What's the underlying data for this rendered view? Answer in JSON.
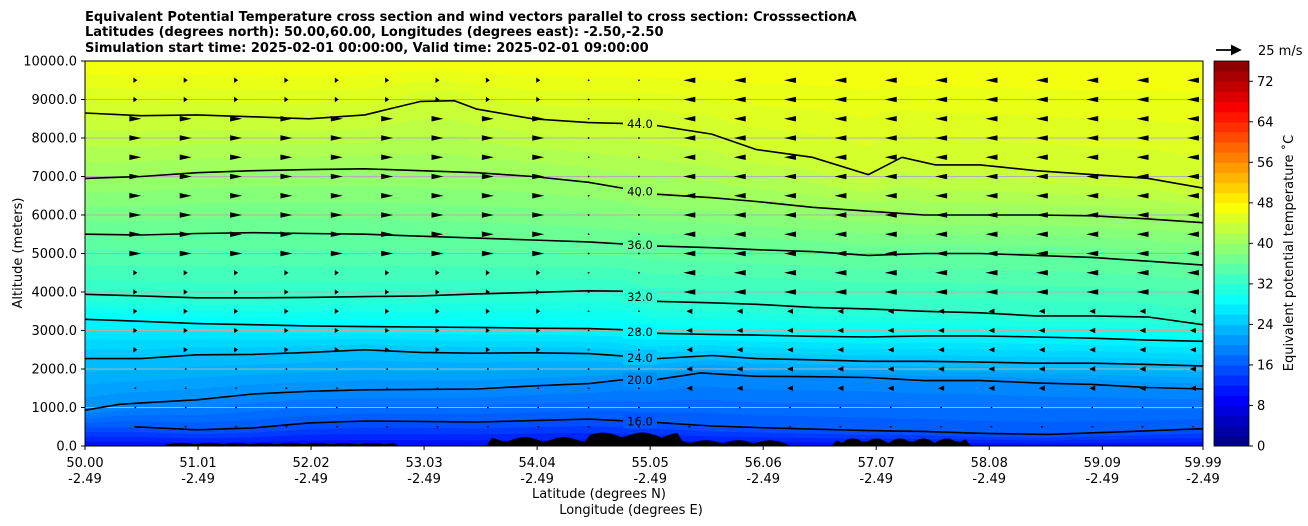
{
  "title_lines": [
    "Equivalent Potential Temperature cross section and wind vectors parallel to cross section: CrosssectionA",
    "Latitudes (degrees north): 50.00,60.00, Longitudes (degrees east): -2.50,-2.50",
    "Simulation start time: 2025-02-01 00:00:00, Valid time: 2025-02-01 09:00:00"
  ],
  "quiver_key": "25 m/s",
  "chart_data": {
    "type": "contour",
    "ylabel": "Altitude (meters)",
    "xlabel_lines": [
      "Latitude (degrees N)",
      "Longitude (degrees E)"
    ],
    "colorbar_label": "Equivalent potential temperature ˚C",
    "x_ticks": [
      {
        "lat": "50.00",
        "lon": "-2.49"
      },
      {
        "lat": "51.01",
        "lon": "-2.49"
      },
      {
        "lat": "52.02",
        "lon": "-2.49"
      },
      {
        "lat": "53.03",
        "lon": "-2.49"
      },
      {
        "lat": "54.04",
        "lon": "-2.49"
      },
      {
        "lat": "55.05",
        "lon": "-2.49"
      },
      {
        "lat": "56.06",
        "lon": "-2.49"
      },
      {
        "lat": "57.07",
        "lon": "-2.49"
      },
      {
        "lat": "58.08",
        "lon": "-2.49"
      },
      {
        "lat": "59.09",
        "lon": "-2.49"
      },
      {
        "lat": "59.99",
        "lon": "-2.49"
      }
    ],
    "x_range": [
      50.0,
      59.99
    ],
    "y_ticks": [
      "0.0",
      "1000.0",
      "2000.0",
      "3000.0",
      "4000.0",
      "5000.0",
      "6000.0",
      "7000.0",
      "8000.0",
      "9000.0",
      "10000.0"
    ],
    "y_range": [
      0,
      10000
    ],
    "colorbar_ticks": [
      "0",
      "8",
      "16",
      "24",
      "32",
      "40",
      "48",
      "56",
      "64",
      "72"
    ],
    "colorbar_range": [
      0,
      76
    ],
    "contours": [
      {
        "level": 16,
        "label": "16.0",
        "points": [
          [
            50.45,
            500
          ],
          [
            51.0,
            420
          ],
          [
            51.5,
            470
          ],
          [
            52.0,
            600
          ],
          [
            52.5,
            650
          ],
          [
            53.0,
            640
          ],
          [
            53.5,
            620
          ],
          [
            54.0,
            660
          ],
          [
            54.5,
            700
          ],
          [
            55.05,
            620
          ],
          [
            55.6,
            520
          ],
          [
            56.0,
            480
          ],
          [
            56.5,
            440
          ],
          [
            57.0,
            400
          ],
          [
            57.5,
            380
          ],
          [
            58.0,
            330
          ],
          [
            58.6,
            300
          ],
          [
            59.2,
            360
          ],
          [
            59.99,
            450
          ]
        ]
      },
      {
        "level": 20,
        "label": "20.0",
        "points": [
          [
            50.0,
            930
          ],
          [
            50.3,
            1080
          ],
          [
            50.5,
            1120
          ],
          [
            51.0,
            1200
          ],
          [
            51.5,
            1350
          ],
          [
            52.0,
            1420
          ],
          [
            52.5,
            1460
          ],
          [
            53.0,
            1470
          ],
          [
            53.5,
            1480
          ],
          [
            54.0,
            1560
          ],
          [
            54.5,
            1620
          ],
          [
            54.8,
            1720
          ],
          [
            55.05,
            1700
          ],
          [
            55.5,
            1900
          ],
          [
            56.0,
            1810
          ],
          [
            56.5,
            1800
          ],
          [
            57.0,
            1780
          ],
          [
            57.5,
            1700
          ],
          [
            58.0,
            1700
          ],
          [
            58.5,
            1640
          ],
          [
            59.0,
            1600
          ],
          [
            59.5,
            1520
          ],
          [
            59.99,
            1480
          ]
        ]
      },
      {
        "level": 24,
        "label": "24.0",
        "points": [
          [
            50.0,
            2270
          ],
          [
            50.5,
            2270
          ],
          [
            51.0,
            2370
          ],
          [
            51.5,
            2380
          ],
          [
            52.0,
            2430
          ],
          [
            52.5,
            2500
          ],
          [
            53.0,
            2430
          ],
          [
            53.5,
            2410
          ],
          [
            54.0,
            2420
          ],
          [
            54.5,
            2400
          ],
          [
            54.8,
            2340
          ],
          [
            55.05,
            2260
          ],
          [
            55.6,
            2350
          ],
          [
            56.0,
            2270
          ],
          [
            56.5,
            2240
          ],
          [
            57.0,
            2200
          ],
          [
            57.5,
            2200
          ],
          [
            58.0,
            2180
          ],
          [
            58.5,
            2150
          ],
          [
            59.0,
            2150
          ],
          [
            59.5,
            2120
          ],
          [
            59.99,
            2080
          ]
        ]
      },
      {
        "level": 28,
        "label": "28.0",
        "points": [
          [
            50.0,
            3290
          ],
          [
            50.5,
            3240
          ],
          [
            51.0,
            3180
          ],
          [
            51.5,
            3150
          ],
          [
            52.0,
            3120
          ],
          [
            52.5,
            3100
          ],
          [
            53.0,
            3090
          ],
          [
            53.5,
            3080
          ],
          [
            54.0,
            3060
          ],
          [
            54.5,
            3050
          ],
          [
            54.8,
            3020
          ],
          [
            55.05,
            2930
          ],
          [
            55.6,
            2900
          ],
          [
            56.0,
            2880
          ],
          [
            56.5,
            2850
          ],
          [
            57.0,
            2830
          ],
          [
            57.5,
            2860
          ],
          [
            58.0,
            2860
          ],
          [
            58.5,
            2830
          ],
          [
            59.0,
            2800
          ],
          [
            59.5,
            2750
          ],
          [
            59.99,
            2720
          ]
        ]
      },
      {
        "level": 32,
        "label": "32.0",
        "points": [
          [
            50.0,
            3940
          ],
          [
            50.5,
            3900
          ],
          [
            51.0,
            3850
          ],
          [
            51.5,
            3850
          ],
          [
            52.0,
            3860
          ],
          [
            52.5,
            3880
          ],
          [
            53.0,
            3900
          ],
          [
            53.5,
            3950
          ],
          [
            54.0,
            3990
          ],
          [
            54.5,
            4030
          ],
          [
            54.8,
            4020
          ],
          [
            55.05,
            3760
          ],
          [
            55.6,
            3720
          ],
          [
            56.0,
            3680
          ],
          [
            56.5,
            3600
          ],
          [
            57.0,
            3560
          ],
          [
            57.5,
            3500
          ],
          [
            58.0,
            3460
          ],
          [
            58.5,
            3380
          ],
          [
            59.0,
            3380
          ],
          [
            59.5,
            3350
          ],
          [
            59.99,
            3150
          ]
        ]
      },
      {
        "level": 36,
        "label": "36.0",
        "points": [
          [
            50.0,
            5500
          ],
          [
            50.5,
            5480
          ],
          [
            51.0,
            5520
          ],
          [
            51.5,
            5540
          ],
          [
            52.0,
            5520
          ],
          [
            52.5,
            5500
          ],
          [
            53.0,
            5450
          ],
          [
            53.5,
            5400
          ],
          [
            54.0,
            5350
          ],
          [
            54.5,
            5300
          ],
          [
            54.8,
            5250
          ],
          [
            55.05,
            5200
          ],
          [
            55.6,
            5150
          ],
          [
            56.0,
            5100
          ],
          [
            56.5,
            5050
          ],
          [
            57.0,
            4950
          ],
          [
            57.5,
            5000
          ],
          [
            58.0,
            5000
          ],
          [
            58.5,
            4950
          ],
          [
            59.0,
            4900
          ],
          [
            59.5,
            4800
          ],
          [
            59.99,
            4700
          ]
        ]
      },
      {
        "level": 40,
        "label": "40.0",
        "points": [
          [
            50.0,
            6950
          ],
          [
            50.5,
            7000
          ],
          [
            51.0,
            7100
          ],
          [
            51.5,
            7150
          ],
          [
            52.0,
            7180
          ],
          [
            52.5,
            7200
          ],
          [
            53.0,
            7150
          ],
          [
            53.5,
            7100
          ],
          [
            54.0,
            7000
          ],
          [
            54.5,
            6850
          ],
          [
            54.8,
            6700
          ],
          [
            55.05,
            6550
          ],
          [
            55.6,
            6450
          ],
          [
            56.0,
            6350
          ],
          [
            56.5,
            6200
          ],
          [
            57.0,
            6100
          ],
          [
            57.5,
            6000
          ],
          [
            58.0,
            6000
          ],
          [
            58.5,
            6000
          ],
          [
            59.0,
            5980
          ],
          [
            59.5,
            5900
          ],
          [
            59.99,
            5800
          ]
        ]
      },
      {
        "level": 44,
        "label": "44.0",
        "points": [
          [
            50.0,
            8650
          ],
          [
            50.5,
            8580
          ],
          [
            51.0,
            8600
          ],
          [
            51.5,
            8550
          ],
          [
            52.0,
            8500
          ],
          [
            52.5,
            8600
          ],
          [
            53.0,
            8950
          ],
          [
            53.3,
            8970
          ],
          [
            53.5,
            8750
          ],
          [
            54.0,
            8500
          ],
          [
            54.5,
            8400
          ],
          [
            54.8,
            8380
          ],
          [
            55.05,
            8350
          ],
          [
            55.6,
            8100
          ],
          [
            56.0,
            7700
          ],
          [
            56.5,
            7500
          ],
          [
            57.0,
            7050
          ],
          [
            57.3,
            7500
          ],
          [
            57.6,
            7300
          ],
          [
            58.0,
            7300
          ],
          [
            58.5,
            7150
          ],
          [
            59.0,
            7050
          ],
          [
            59.5,
            6950
          ],
          [
            59.99,
            6700
          ]
        ]
      }
    ]
  }
}
